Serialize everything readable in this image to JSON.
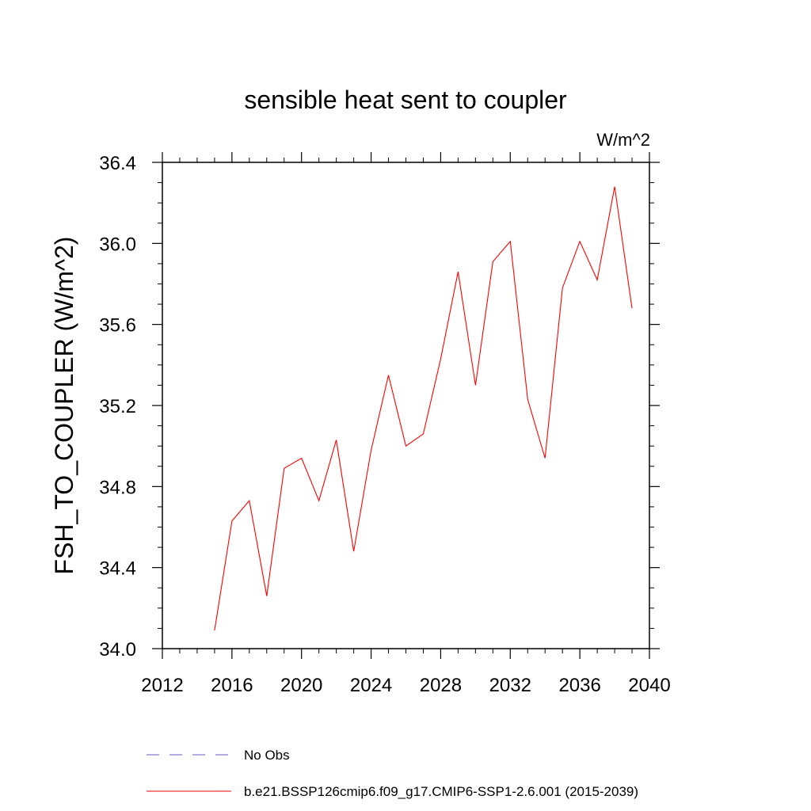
{
  "chart_data": {
    "type": "line",
    "title": "sensible heat sent to coupler",
    "units_label": "W/m^2",
    "ylabel": "FSH_TO_COUPLER  (W/m^2)",
    "xlabel": "",
    "xlim": [
      2012,
      2040
    ],
    "ylim": [
      34.0,
      36.4
    ],
    "xticks": [
      "2012",
      "2016",
      "2020",
      "2024",
      "2028",
      "2032",
      "2036",
      "2040"
    ],
    "yticks": [
      "34.0",
      "34.4",
      "34.8",
      "35.2",
      "35.6",
      "36.0",
      "36.4"
    ],
    "grid": false,
    "legend_placement": "bottom",
    "series": [
      {
        "name": "b.e21.BSSP126cmip6.f09_g17.CMIP6-SSP1-2.6.001 (2015-2039)",
        "color": "#ff0000",
        "dash": "solid",
        "x": [
          2015,
          2016,
          2017,
          2018,
          2019,
          2020,
          2021,
          2022,
          2023,
          2024,
          2025,
          2026,
          2027,
          2028,
          2029,
          2030,
          2031,
          2032,
          2033,
          2034,
          2035,
          2036,
          2037,
          2038,
          2039
        ],
        "y": [
          34.09,
          34.63,
          34.73,
          34.26,
          34.89,
          34.94,
          34.73,
          35.03,
          34.48,
          34.98,
          35.35,
          35.0,
          35.06,
          35.43,
          35.86,
          35.3,
          35.91,
          36.01,
          35.23,
          34.94,
          35.78,
          36.01,
          35.82,
          36.28,
          35.68
        ]
      }
    ],
    "legend": [
      {
        "label": "No Obs",
        "color": "#6a5acd",
        "dash": "dashed"
      },
      {
        "label": "b.e21.BSSP126cmip6.f09_g17.CMIP6-SSP1-2.6.001 (2015-2039)",
        "color": "#ff0000",
        "dash": "solid"
      }
    ]
  }
}
